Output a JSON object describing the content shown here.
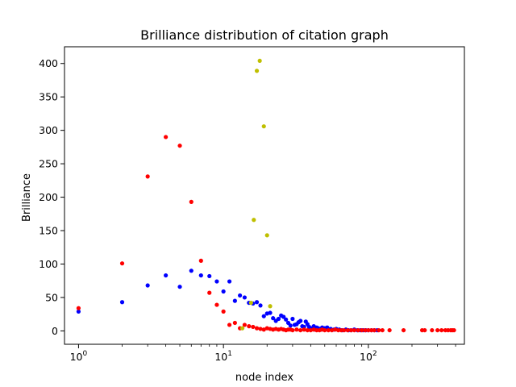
{
  "chart_data": {
    "type": "scatter",
    "title": "Brilliance distribution of citation graph",
    "xlabel": "node index",
    "ylabel": "Brilliance",
    "xscale": "log",
    "xlim": [
      0.8,
      460
    ],
    "ylim": [
      -20,
      425
    ],
    "grid": false,
    "legend": "none",
    "x_ticks": [
      {
        "value": 1,
        "base": "10",
        "exp": "0"
      },
      {
        "value": 10,
        "base": "10",
        "exp": "1"
      },
      {
        "value": 100,
        "base": "10",
        "exp": "2"
      }
    ],
    "x_minor_ticks": [
      2,
      3,
      4,
      5,
      6,
      7,
      8,
      9,
      20,
      30,
      40,
      50,
      60,
      70,
      80,
      90,
      200,
      300,
      400
    ],
    "y_ticks": [
      {
        "value": 0,
        "label": "0"
      },
      {
        "value": 50,
        "label": "50"
      },
      {
        "value": 100,
        "label": "100"
      },
      {
        "value": 150,
        "label": "150"
      },
      {
        "value": 200,
        "label": "200"
      },
      {
        "value": 250,
        "label": "250"
      },
      {
        "value": 300,
        "label": "300"
      },
      {
        "value": 350,
        "label": "350"
      },
      {
        "value": 400,
        "label": "400"
      }
    ],
    "series": [
      {
        "color": "#0000ff",
        "points": [
          [
            1,
            29
          ],
          [
            2,
            43
          ],
          [
            3,
            68
          ],
          [
            4,
            83
          ],
          [
            5,
            66
          ],
          [
            6,
            90
          ],
          [
            7,
            83
          ],
          [
            8,
            82
          ],
          [
            9,
            74
          ],
          [
            10,
            59
          ],
          [
            11,
            74
          ],
          [
            12,
            45
          ],
          [
            13,
            53
          ],
          [
            14,
            50
          ],
          [
            15,
            42
          ],
          [
            16,
            41
          ],
          [
            17,
            43
          ],
          [
            18,
            38
          ],
          [
            19,
            22
          ],
          [
            20,
            26
          ],
          [
            21,
            27
          ],
          [
            22,
            19
          ],
          [
            23,
            15
          ],
          [
            24,
            18
          ],
          [
            25,
            23
          ],
          [
            26,
            21
          ],
          [
            27,
            17
          ],
          [
            28,
            12
          ],
          [
            29,
            8
          ],
          [
            30,
            18
          ],
          [
            31,
            9
          ],
          [
            32,
            10
          ],
          [
            33,
            13
          ],
          [
            34,
            15
          ],
          [
            35,
            7
          ],
          [
            36,
            6
          ],
          [
            37,
            14
          ],
          [
            38,
            10
          ],
          [
            39,
            6
          ],
          [
            40,
            4
          ],
          [
            41,
            3
          ],
          [
            42,
            7
          ],
          [
            43,
            2
          ],
          [
            44,
            5
          ],
          [
            45,
            4
          ],
          [
            46,
            3
          ],
          [
            47,
            2
          ],
          [
            48,
            5
          ],
          [
            50,
            4
          ],
          [
            52,
            5
          ],
          [
            55,
            3
          ],
          [
            58,
            2
          ],
          [
            60,
            3
          ],
          [
            63,
            2
          ],
          [
            66,
            1
          ],
          [
            70,
            2
          ],
          [
            73,
            1
          ],
          [
            76,
            1
          ],
          [
            80,
            2
          ],
          [
            84,
            1
          ],
          [
            88,
            1
          ],
          [
            92,
            1
          ],
          [
            96,
            1
          ],
          [
            100,
            1
          ],
          [
            105,
            1
          ],
          [
            110,
            1
          ],
          [
            115,
            1
          ]
        ]
      },
      {
        "color": "#ff0000",
        "points": [
          [
            1,
            34
          ],
          [
            2,
            101
          ],
          [
            3,
            231
          ],
          [
            4,
            290
          ],
          [
            5,
            277
          ],
          [
            6,
            193
          ],
          [
            7,
            105
          ],
          [
            8,
            57
          ],
          [
            9,
            39
          ],
          [
            10,
            29
          ],
          [
            11,
            9
          ],
          [
            12,
            12
          ],
          [
            13,
            4
          ],
          [
            14,
            9
          ],
          [
            15,
            7
          ],
          [
            16,
            6
          ],
          [
            17,
            4
          ],
          [
            18,
            3
          ],
          [
            19,
            2
          ],
          [
            20,
            4
          ],
          [
            21,
            3
          ],
          [
            22,
            2
          ],
          [
            23,
            3
          ],
          [
            24,
            2
          ],
          [
            25,
            3
          ],
          [
            26,
            2
          ],
          [
            27,
            1
          ],
          [
            28,
            2
          ],
          [
            29,
            2
          ],
          [
            30,
            1
          ],
          [
            32,
            2
          ],
          [
            34,
            1
          ],
          [
            36,
            2
          ],
          [
            38,
            1
          ],
          [
            40,
            1
          ],
          [
            42,
            2
          ],
          [
            44,
            1
          ],
          [
            46,
            1
          ],
          [
            48,
            2
          ],
          [
            50,
            1
          ],
          [
            53,
            1
          ],
          [
            56,
            1
          ],
          [
            59,
            2
          ],
          [
            62,
            1
          ],
          [
            65,
            1
          ],
          [
            68,
            1
          ],
          [
            72,
            1
          ],
          [
            76,
            1
          ],
          [
            80,
            1
          ],
          [
            85,
            1
          ],
          [
            90,
            1
          ],
          [
            95,
            1
          ],
          [
            100,
            1
          ],
          [
            105,
            1
          ],
          [
            110,
            1
          ],
          [
            118,
            1
          ],
          [
            125,
            1
          ],
          [
            140,
            1
          ],
          [
            175,
            1
          ],
          [
            235,
            1
          ],
          [
            245,
            1
          ],
          [
            275,
            1
          ],
          [
            300,
            1
          ],
          [
            320,
            1
          ],
          [
            340,
            1
          ],
          [
            355,
            1
          ],
          [
            370,
            1
          ],
          [
            380,
            1
          ],
          [
            390,
            1
          ]
        ]
      },
      {
        "color": "#bfbf00",
        "points": [
          [
            13.5,
            4
          ],
          [
            15.5,
            42
          ],
          [
            16.2,
            166
          ],
          [
            17.0,
            389
          ],
          [
            17.8,
            404
          ],
          [
            19.0,
            306
          ],
          [
            20.0,
            143
          ],
          [
            21.0,
            37
          ]
        ]
      }
    ]
  }
}
